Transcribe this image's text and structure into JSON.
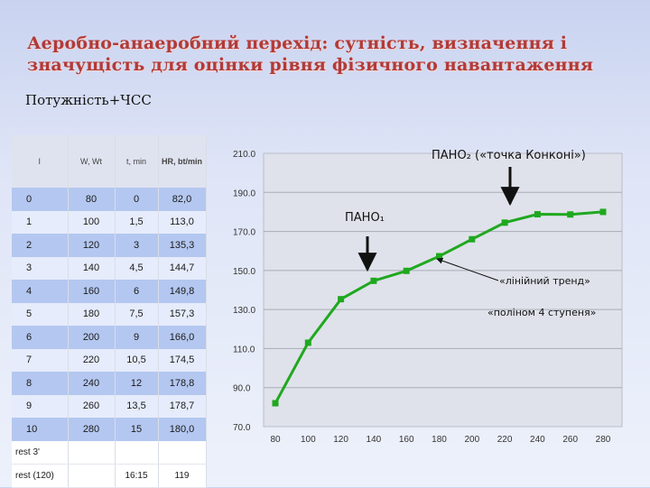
{
  "title": "Аеробно-анаеробний перехід: сутність, визначення і значущість для оцінки рівня фізичного навантаження",
  "subtitle": "Потужність+ЧСС",
  "table": {
    "headers": [
      "I",
      "W, Wt",
      "t, min",
      "HR, bt/min"
    ],
    "rows": [
      [
        "0",
        "80",
        "0",
        "82,0"
      ],
      [
        "1",
        "100",
        "1,5",
        "113,0"
      ],
      [
        "2",
        "120",
        "3",
        "135,3"
      ],
      [
        "3",
        "140",
        "4,5",
        "144,7"
      ],
      [
        "4",
        "160",
        "6",
        "149,8"
      ],
      [
        "5",
        "180",
        "7,5",
        "157,3"
      ],
      [
        "6",
        "200",
        "9",
        "166,0"
      ],
      [
        "7",
        "220",
        "10,5",
        "174,5"
      ],
      [
        "8",
        "240",
        "12",
        "178,8"
      ],
      [
        "9",
        "260",
        "13,5",
        "178,7"
      ],
      [
        "10",
        "280",
        "15",
        "180,0"
      ]
    ],
    "rest_rows": [
      [
        "rest 3'",
        "",
        "",
        ""
      ],
      [
        "rest (120)",
        "",
        "16:15",
        "119"
      ]
    ]
  },
  "chart_data": {
    "type": "line",
    "x": [
      80,
      100,
      120,
      140,
      160,
      180,
      200,
      220,
      240,
      260,
      280
    ],
    "series": [
      {
        "values": [
          82.0,
          113.0,
          135.3,
          144.7,
          149.8,
          157.3,
          166.0,
          174.5,
          178.8,
          178.7,
          180.0
        ],
        "color": "#1fa81f"
      }
    ],
    "xticks": [
      "80",
      "100",
      "120",
      "140",
      "160",
      "180",
      "200",
      "220",
      "240",
      "260",
      "280"
    ],
    "yticks": [
      "70.0",
      "90.0",
      "110.0",
      "130.0",
      "150.0",
      "170.0",
      "190.0",
      "210.0"
    ],
    "ylim": [
      70,
      210
    ],
    "grid": true,
    "annotations": {
      "pano2": "ПАНО₂ («точка Конконі»)",
      "pano1": "ПАНО₁",
      "linear": "«лінійний тренд»",
      "poly": "«поліном 4 ступеня»"
    }
  }
}
